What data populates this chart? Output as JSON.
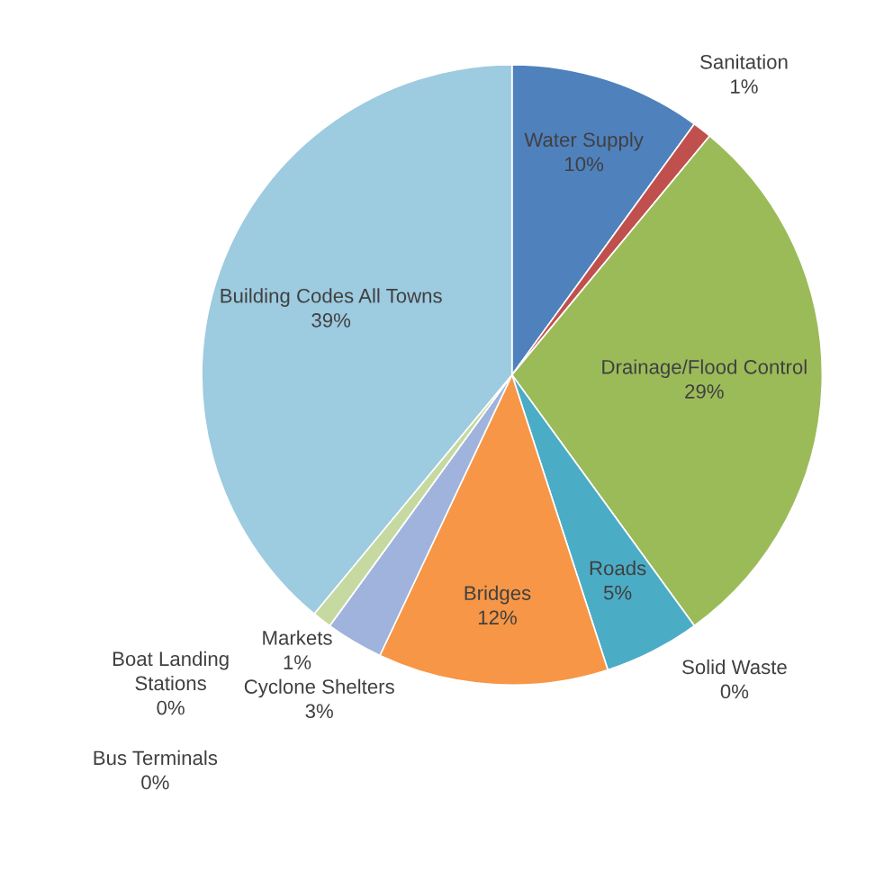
{
  "chart_data": {
    "type": "pie",
    "categories": [
      "Water Supply",
      "Sanitation",
      "Drainage/Flood Control",
      "Solid Waste",
      "Roads",
      "Bridges",
      "Cyclone Shelters",
      "Bus Terminals",
      "Boat Landing Stations",
      "Markets",
      "Building Codes All Towns"
    ],
    "values": [
      10,
      1,
      29,
      0,
      5,
      12,
      3,
      0,
      0,
      1,
      39
    ],
    "colors": [
      "#4f81bd",
      "#c0504d",
      "#9bbb59",
      "#8064a2",
      "#4bacc6",
      "#f79646",
      "#9fb3dc",
      "#e0a0a0",
      "#c8b8dc",
      "#c6d9a0",
      "#9dcbe0"
    ],
    "value_labels": [
      "10%",
      "1%",
      "29%",
      "0%",
      "5%",
      "12%",
      "3%",
      "0%",
      "0%",
      "1%",
      "39%"
    ],
    "legend": false
  }
}
